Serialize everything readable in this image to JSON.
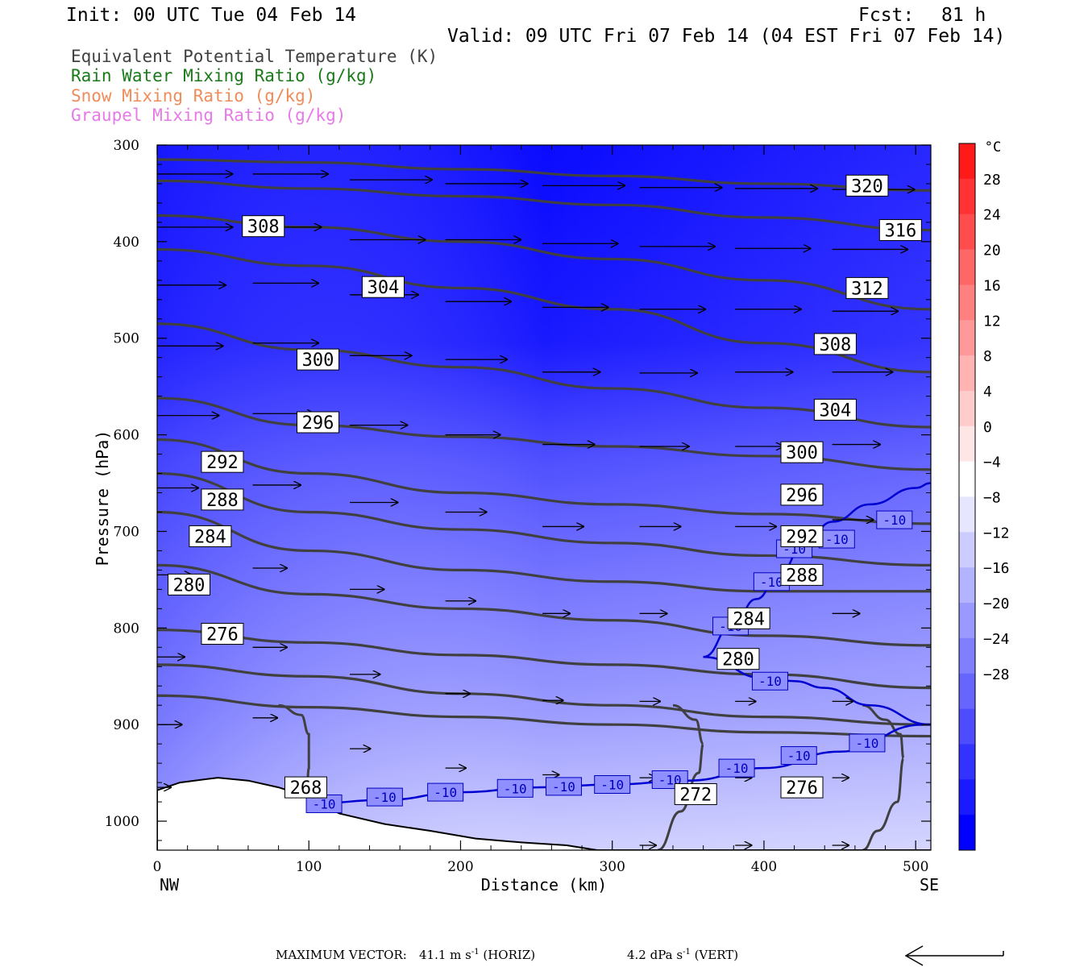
{
  "header": {
    "init": "Init: 00 UTC Tue 04 Feb 14",
    "fcst_label": "Fcst:",
    "fcst_value": "81 h",
    "valid": "Valid: 09 UTC Fri 07 Feb 14 (04 EST Fri 07 Feb 14)"
  },
  "legend": [
    {
      "text": "Equivalent Potential Temperature (K)",
      "color": "#404040"
    },
    {
      "text": "Rain Water Mixing Ratio (g/kg)",
      "color": "#1a7a1a"
    },
    {
      "text": "Snow Mixing Ratio (g/kg)",
      "color": "#f08c5a"
    },
    {
      "text": "Graupel Mixing Ratio (g/kg)",
      "color": "#e67ae6"
    }
  ],
  "footer": {
    "max_vector_label": "MAXIMUM VECTOR:",
    "horiz": "41.1 m s",
    "horiz_sup": "-1",
    "horiz_tail": " (HORIZ)",
    "vert": "4.2 dPa s",
    "vert_sup": "-1",
    "vert_tail": " (VERT)"
  },
  "chart_data": {
    "type": "cross-section",
    "xlabel": "Distance (km)",
    "ylabel": "Pressure (hPa)",
    "x_ticks": [
      "0",
      "100",
      "200",
      "300",
      "400",
      "500"
    ],
    "x_tick_values": [
      0,
      100,
      200,
      300,
      400,
      500
    ],
    "x_end_labels": {
      "left": "NW",
      "right": "SE"
    },
    "xlim": [
      0,
      510
    ],
    "y_ticks": [
      "300",
      "400",
      "500",
      "600",
      "700",
      "800",
      "900",
      "1000"
    ],
    "y_tick_values": [
      300,
      400,
      500,
      600,
      700,
      800,
      900,
      1000
    ],
    "ylim": [
      300,
      1030
    ],
    "colorbar": {
      "unit": "°C",
      "labels": [
        "28",
        "24",
        "20",
        "16",
        "12",
        "8",
        "4",
        "0",
        "-4",
        "-8",
        "-12",
        "-16",
        "-20",
        "-24",
        "-28"
      ],
      "colors": [
        "#ff1a1a",
        "#ff3333",
        "#ff4d4d",
        "#ff6666",
        "#ff8080",
        "#ff9999",
        "#ffb3b3",
        "#ffcccc",
        "#ffe6e6",
        "#ffffff",
        "#e6e6ff",
        "#ccccff",
        "#b3b3ff",
        "#9999ff",
        "#8080ff",
        "#6666ff",
        "#4d4dff",
        "#3333ff",
        "#1a1aff",
        "#0000ff"
      ]
    },
    "theta_e_contours": [
      {
        "label": "320",
        "x": [
          0,
          100,
          200,
          300,
          400,
          510
        ],
        "y": [
          315,
          318,
          325,
          332,
          340,
          347
        ]
      },
      {
        "label": "316",
        "x": [
          0,
          100,
          200,
          300,
          400,
          510
        ],
        "y": [
          337,
          345,
          353,
          362,
          375,
          388
        ]
      },
      {
        "label": "312",
        "x": [
          0,
          100,
          200,
          300,
          400,
          510
        ],
        "y": [
          373,
          385,
          400,
          418,
          440,
          470
        ]
      },
      {
        "label": "308",
        "x": [
          0,
          100,
          200,
          300,
          400,
          510
        ],
        "y": [
          408,
          425,
          448,
          470,
          505,
          535
        ]
      },
      {
        "label": "304",
        "x": [
          0,
          100,
          200,
          300,
          400,
          510
        ],
        "y": [
          485,
          512,
          530,
          552,
          572,
          592
        ]
      },
      {
        "label": "300",
        "x": [
          0,
          100,
          200,
          300,
          400,
          510
        ],
        "y": [
          562,
          590,
          602,
          612,
          622,
          636
        ]
      },
      {
        "label": "296",
        "x": [
          0,
          100,
          200,
          300,
          400,
          510
        ],
        "y": [
          605,
          640,
          660,
          672,
          682,
          692
        ]
      },
      {
        "label": "292",
        "x": [
          0,
          100,
          200,
          300,
          400,
          510
        ],
        "y": [
          640,
          680,
          698,
          712,
          725,
          735
        ]
      },
      {
        "label": "288",
        "x": [
          0,
          100,
          200,
          300,
          400,
          510
        ],
        "y": [
          680,
          720,
          740,
          752,
          762,
          762
        ]
      },
      {
        "label": "284",
        "x": [
          0,
          100,
          200,
          300,
          400,
          510
        ],
        "y": [
          735,
          765,
          780,
          792,
          808,
          818
        ]
      },
      {
        "label": "280",
        "x": [
          0,
          100,
          200,
          300,
          400,
          510
        ],
        "y": [
          802,
          815,
          828,
          838,
          848,
          862
        ]
      },
      {
        "label": "276",
        "x": [
          0,
          100,
          200,
          300,
          400,
          510
        ],
        "y": [
          838,
          850,
          868,
          880,
          892,
          900
        ]
      },
      {
        "label": "272",
        "x": [
          0,
          100,
          200,
          300,
          400,
          510
        ],
        "y": [
          870,
          882,
          892,
          900,
          908,
          912
        ]
      }
    ],
    "theta_e_labels": [
      {
        "text": "320",
        "x": 468,
        "p": 342
      },
      {
        "text": "316",
        "x": 490,
        "p": 388
      },
      {
        "text": "312",
        "x": 468,
        "p": 448
      },
      {
        "text": "308",
        "x": 447,
        "p": 506
      },
      {
        "text": "304",
        "x": 447,
        "p": 574
      },
      {
        "text": "300",
        "x": 425,
        "p": 618
      },
      {
        "text": "296",
        "x": 425,
        "p": 662
      },
      {
        "text": "292",
        "x": 425,
        "p": 705
      },
      {
        "text": "288",
        "x": 425,
        "p": 745
      },
      {
        "text": "284",
        "x": 390,
        "p": 790
      },
      {
        "text": "280",
        "x": 383,
        "p": 832
      },
      {
        "text": "276",
        "x": 425,
        "p": 965
      },
      {
        "text": "272",
        "x": 355,
        "p": 972
      },
      {
        "text": "268",
        "x": 98,
        "p": 965
      },
      {
        "text": "308",
        "x": 70,
        "p": 384
      },
      {
        "text": "304",
        "x": 149,
        "p": 447
      },
      {
        "text": "300",
        "x": 106,
        "p": 522
      },
      {
        "text": "296",
        "x": 106,
        "p": 587
      },
      {
        "text": "292",
        "x": 43,
        "p": 628
      },
      {
        "text": "288",
        "x": 43,
        "p": 667
      },
      {
        "text": "284",
        "x": 35,
        "p": 705
      },
      {
        "text": "280",
        "x": 21,
        "p": 755
      },
      {
        "text": "276",
        "x": 43,
        "p": 806
      }
    ],
    "temperature_contour_minus10": {
      "label": "-10",
      "lower_x": [
        100,
        150,
        200,
        250,
        300,
        350,
        400,
        450,
        505
      ],
      "lower_p": [
        982,
        978,
        970,
        965,
        962,
        958,
        945,
        928,
        900
      ],
      "upper_x": [
        360,
        400,
        420,
        440,
        470,
        510
      ],
      "upper_p": [
        830,
        852,
        855,
        862,
        880,
        900
      ],
      "upper_branch_x": [
        360,
        380,
        395,
        410,
        425,
        445,
        470,
        500,
        510
      ],
      "upper_branch_p": [
        830,
        795,
        770,
        745,
        718,
        690,
        672,
        655,
        650
      ],
      "labels": [
        {
          "x": 110,
          "p": 982
        },
        {
          "x": 150,
          "p": 975
        },
        {
          "x": 190,
          "p": 970
        },
        {
          "x": 236,
          "p": 966
        },
        {
          "x": 268,
          "p": 964
        },
        {
          "x": 300,
          "p": 962
        },
        {
          "x": 338,
          "p": 957
        },
        {
          "x": 382,
          "p": 945
        },
        {
          "x": 423,
          "p": 932
        },
        {
          "x": 468,
          "p": 919
        },
        {
          "x": 378,
          "p": 798
        },
        {
          "x": 405,
          "p": 752
        },
        {
          "x": 420,
          "p": 718
        },
        {
          "x": 448,
          "p": 708
        },
        {
          "x": 486,
          "p": 688
        },
        {
          "x": 404,
          "p": 855
        }
      ]
    },
    "terrain": {
      "x": [
        0,
        15,
        40,
        60,
        80,
        100,
        120,
        150,
        180,
        210,
        240,
        270,
        290,
        510
      ],
      "p": [
        968,
        960,
        955,
        958,
        965,
        975,
        992,
        1003,
        1010,
        1018,
        1022,
        1025,
        1030,
        1030
      ]
    },
    "wind_vectors": [
      {
        "x": 0,
        "p": 330,
        "dx": 55,
        "dp": 0
      },
      {
        "x": 63,
        "p": 330,
        "dx": 55,
        "dp": 0
      },
      {
        "x": 127,
        "p": 336,
        "dx": 60,
        "dp": 0
      },
      {
        "x": 190,
        "p": 340,
        "dx": 60,
        "dp": 0
      },
      {
        "x": 254,
        "p": 342,
        "dx": 60,
        "dp": 0
      },
      {
        "x": 318,
        "p": 344,
        "dx": 60,
        "dp": 0
      },
      {
        "x": 381,
        "p": 345,
        "dx": 60,
        "dp": 0
      },
      {
        "x": 445,
        "p": 346,
        "dx": 60,
        "dp": 0
      },
      {
        "x": 0,
        "p": 385,
        "dx": 55,
        "dp": 0
      },
      {
        "x": 63,
        "p": 385,
        "dx": 50,
        "dp": 0
      },
      {
        "x": 127,
        "p": 398,
        "dx": 55,
        "dp": 0
      },
      {
        "x": 190,
        "p": 398,
        "dx": 55,
        "dp": 0
      },
      {
        "x": 254,
        "p": 402,
        "dx": 55,
        "dp": 0
      },
      {
        "x": 318,
        "p": 405,
        "dx": 55,
        "dp": 0
      },
      {
        "x": 381,
        "p": 407,
        "dx": 55,
        "dp": 0
      },
      {
        "x": 445,
        "p": 408,
        "dx": 55,
        "dp": 0
      },
      {
        "x": 0,
        "p": 445,
        "dx": 50,
        "dp": 0
      },
      {
        "x": 63,
        "p": 443,
        "dx": 48,
        "dp": 0
      },
      {
        "x": 127,
        "p": 455,
        "dx": 50,
        "dp": 0
      },
      {
        "x": 190,
        "p": 462,
        "dx": 48,
        "dp": 0
      },
      {
        "x": 254,
        "p": 468,
        "dx": 48,
        "dp": 0
      },
      {
        "x": 318,
        "p": 470,
        "dx": 48,
        "dp": 0
      },
      {
        "x": 381,
        "p": 470,
        "dx": 48,
        "dp": 0
      },
      {
        "x": 445,
        "p": 472,
        "dx": 48,
        "dp": 0
      },
      {
        "x": 0,
        "p": 508,
        "dx": 48,
        "dp": 0
      },
      {
        "x": 63,
        "p": 505,
        "dx": 48,
        "dp": 0
      },
      {
        "x": 127,
        "p": 518,
        "dx": 45,
        "dp": 0
      },
      {
        "x": 190,
        "p": 522,
        "dx": 45,
        "dp": 0
      },
      {
        "x": 254,
        "p": 535,
        "dx": 42,
        "dp": 0
      },
      {
        "x": 318,
        "p": 536,
        "dx": 42,
        "dp": 0
      },
      {
        "x": 381,
        "p": 535,
        "dx": 42,
        "dp": 0
      },
      {
        "x": 445,
        "p": 535,
        "dx": 44,
        "dp": 0
      },
      {
        "x": 0,
        "p": 580,
        "dx": 45,
        "dp": 0
      },
      {
        "x": 63,
        "p": 578,
        "dx": 45,
        "dp": 0
      },
      {
        "x": 127,
        "p": 590,
        "dx": 42,
        "dp": 0
      },
      {
        "x": 190,
        "p": 600,
        "dx": 40,
        "dp": 0
      },
      {
        "x": 254,
        "p": 610,
        "dx": 38,
        "dp": 0
      },
      {
        "x": 318,
        "p": 612,
        "dx": 36,
        "dp": 0
      },
      {
        "x": 381,
        "p": 612,
        "dx": 35,
        "dp": 0
      },
      {
        "x": 445,
        "p": 610,
        "dx": 35,
        "dp": 0
      },
      {
        "x": 0,
        "p": 655,
        "dx": 30,
        "dp": 0
      },
      {
        "x": 63,
        "p": 652,
        "dx": 35,
        "dp": 0
      },
      {
        "x": 127,
        "p": 670,
        "dx": 35,
        "dp": 0
      },
      {
        "x": 190,
        "p": 680,
        "dx": 30,
        "dp": 0
      },
      {
        "x": 254,
        "p": 695,
        "dx": 30,
        "dp": 0
      },
      {
        "x": 318,
        "p": 695,
        "dx": 30,
        "dp": 0
      },
      {
        "x": 381,
        "p": 695,
        "dx": 30,
        "dp": 0
      },
      {
        "x": 445,
        "p": 688,
        "dx": 30,
        "dp": 0
      },
      {
        "x": 0,
        "p": 745,
        "dx": 25,
        "dp": 0
      },
      {
        "x": 63,
        "p": 738,
        "dx": 25,
        "dp": 0
      },
      {
        "x": 127,
        "p": 760,
        "dx": 25,
        "dp": 0
      },
      {
        "x": 190,
        "p": 772,
        "dx": 22,
        "dp": 0
      },
      {
        "x": 254,
        "p": 785,
        "dx": 20,
        "dp": 0
      },
      {
        "x": 318,
        "p": 785,
        "dx": 20,
        "dp": 0
      },
      {
        "x": 381,
        "p": 785,
        "dx": 20,
        "dp": 0
      },
      {
        "x": 445,
        "p": 785,
        "dx": 20,
        "dp": 0
      },
      {
        "x": 0,
        "p": 830,
        "dx": 20,
        "dp": 0
      },
      {
        "x": 63,
        "p": 820,
        "dx": 25,
        "dp": 0
      },
      {
        "x": 127,
        "p": 848,
        "dx": 22,
        "dp": 0
      },
      {
        "x": 190,
        "p": 868,
        "dx": 18,
        "dp": 0
      },
      {
        "x": 254,
        "p": 875,
        "dx": 15,
        "dp": 0
      },
      {
        "x": 318,
        "p": 876,
        "dx": 15,
        "dp": 0
      },
      {
        "x": 381,
        "p": 876,
        "dx": 15,
        "dp": 0
      },
      {
        "x": 445,
        "p": 876,
        "dx": 15,
        "dp": 0
      },
      {
        "x": 0,
        "p": 900,
        "dx": 18,
        "dp": 0
      },
      {
        "x": 63,
        "p": 893,
        "dx": 18,
        "dp": 0
      },
      {
        "x": 127,
        "p": 925,
        "dx": 15,
        "dp": 0
      },
      {
        "x": 190,
        "p": 945,
        "dx": 15,
        "dp": 0
      },
      {
        "x": 254,
        "p": 952,
        "dx": 12,
        "dp": 0
      },
      {
        "x": 318,
        "p": 955,
        "dx": 12,
        "dp": 0
      },
      {
        "x": 381,
        "p": 955,
        "dx": 12,
        "dp": 0
      },
      {
        "x": 445,
        "p": 955,
        "dx": 12,
        "dp": 0
      },
      {
        "x": 0,
        "p": 965,
        "dx": 10,
        "dp": 0
      },
      {
        "x": 381,
        "p": 1025,
        "dx": 12,
        "dp": 0
      },
      {
        "x": 445,
        "p": 1025,
        "dx": 12,
        "dp": 0
      },
      {
        "x": 318,
        "p": 1025,
        "dx": 12,
        "dp": 0
      }
    ]
  }
}
